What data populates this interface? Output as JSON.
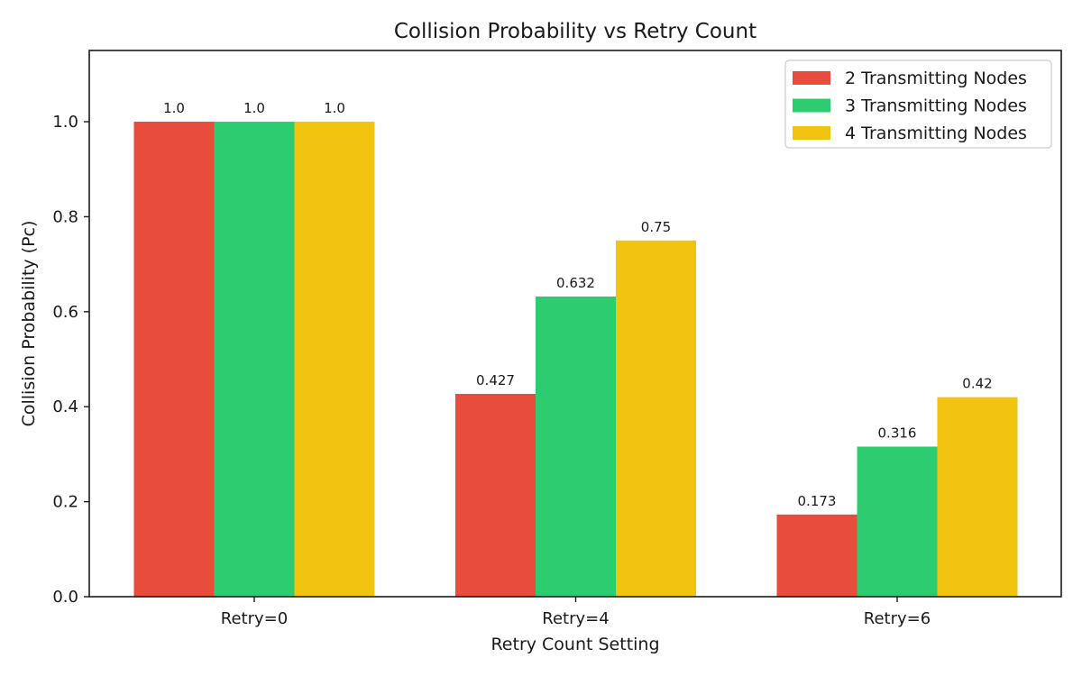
{
  "chart_data": {
    "type": "bar",
    "title": "Collision Probability vs Retry Count",
    "xlabel": "Retry Count Setting",
    "ylabel": "Collision Probability (Pc)",
    "categories": [
      "Retry=0",
      "Retry=4",
      "Retry=6"
    ],
    "series": [
      {
        "name": "2 Transmitting Nodes",
        "color": "#e74c3c",
        "values": [
          1.0,
          0.427,
          0.173
        ],
        "labels": [
          "1.0",
          "0.427",
          "0.173"
        ]
      },
      {
        "name": "3 Transmitting Nodes",
        "color": "#2ecc71",
        "values": [
          1.0,
          0.632,
          0.316
        ],
        "labels": [
          "1.0",
          "0.632",
          "0.316"
        ]
      },
      {
        "name": "4 Transmitting Nodes",
        "color": "#f1c40f",
        "values": [
          1.0,
          0.75,
          0.42
        ],
        "labels": [
          "1.0",
          "0.75",
          "0.42"
        ]
      }
    ],
    "ylim": [
      0,
      1.15
    ],
    "yticks": [
      0.0,
      0.2,
      0.4,
      0.6,
      0.8,
      1.0
    ],
    "ytick_labels": [
      "0.0",
      "0.2",
      "0.4",
      "0.6",
      "0.8",
      "1.0"
    ],
    "grid": false,
    "legend_position": "top-right"
  }
}
